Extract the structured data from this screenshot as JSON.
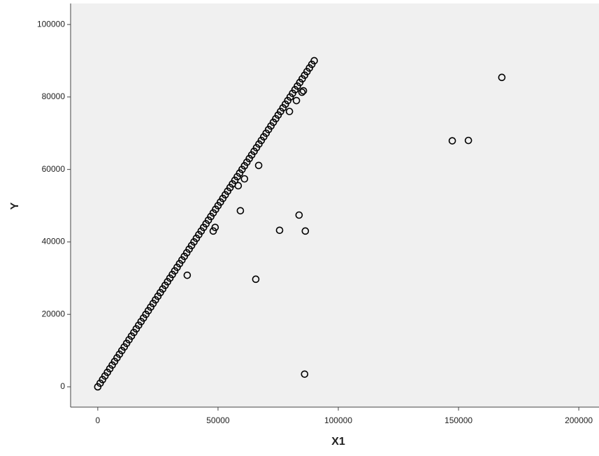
{
  "chart_data": {
    "type": "scatter",
    "x_label": "X1",
    "y_label": "Y",
    "x": [
      0,
      1000,
      2000,
      3000,
      4000,
      5000,
      6000,
      7000,
      8000,
      9000,
      10000,
      11000,
      12000,
      13000,
      14000,
      15000,
      16000,
      17000,
      18000,
      19000,
      20000,
      21000,
      22000,
      23000,
      24000,
      25000,
      26000,
      27000,
      28000,
      29000,
      30000,
      31000,
      32000,
      33000,
      34000,
      35000,
      36000,
      37000,
      38000,
      39000,
      40000,
      41000,
      42000,
      43000,
      44000,
      45000,
      46000,
      47000,
      48000,
      49000,
      50000,
      51000,
      52000,
      53000,
      54000,
      55000,
      56000,
      57000,
      58000,
      59000,
      60000,
      61000,
      62000,
      63000,
      64000,
      65000,
      66000,
      67000,
      68000,
      69000,
      70000,
      71000,
      72000,
      73000,
      74000,
      75000,
      76000,
      77000,
      78000,
      79000,
      80000,
      81000,
      82000,
      83000,
      84000,
      85000,
      86000,
      87000,
      88000,
      89000,
      90000,
      168000,
      147400,
      154100,
      83700,
      75600,
      86300,
      59300,
      65700,
      86000,
      66900,
      61000,
      58400,
      48800,
      48000,
      79700,
      82600,
      84900,
      85500,
      37200
    ],
    "y": [
      0,
      1000,
      2000,
      3000,
      4000,
      5000,
      6000,
      7000,
      8000,
      9000,
      10000,
      11000,
      12000,
      13000,
      14000,
      15000,
      16000,
      17000,
      18000,
      19000,
      20000,
      21000,
      22000,
      23000,
      24000,
      25000,
      26000,
      27000,
      28000,
      29000,
      30000,
      31000,
      32000,
      33000,
      34000,
      35000,
      36000,
      37000,
      38000,
      39000,
      40000,
      41000,
      42000,
      43000,
      44000,
      45000,
      46000,
      47000,
      48000,
      49000,
      50000,
      51000,
      52000,
      53000,
      54000,
      55000,
      56000,
      57000,
      58000,
      59000,
      60000,
      61000,
      62000,
      63000,
      64000,
      65000,
      66000,
      67000,
      68000,
      69000,
      70000,
      71000,
      72000,
      73000,
      74000,
      75000,
      76000,
      77000,
      78000,
      79000,
      80000,
      81000,
      82000,
      83000,
      84000,
      85000,
      86000,
      87000,
      88000,
      89000,
      90000,
      85400,
      67900,
      68000,
      47400,
      43200,
      43000,
      48600,
      29700,
      3500,
      61100,
      57400,
      55500,
      44000,
      43000,
      76000,
      79000,
      81300,
      81700,
      30800
    ],
    "color": "#000000",
    "xlim": [
      -11300,
      208400
    ],
    "ylim": [
      -5600,
      105800
    ],
    "xticks": [
      0,
      50000,
      100000,
      150000,
      200000
    ],
    "yticks": [
      0,
      20000,
      40000,
      60000,
      80000,
      100000
    ]
  }
}
